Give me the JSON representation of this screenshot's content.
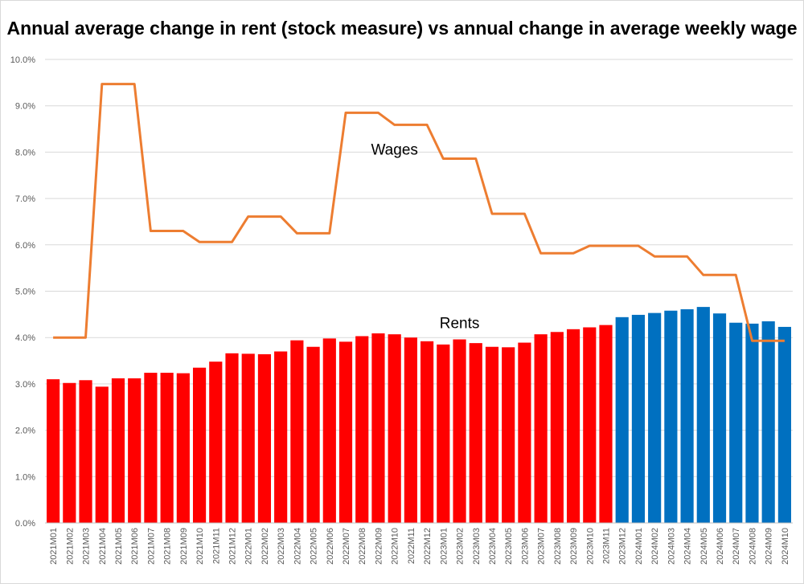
{
  "chart_data": {
    "type": "bar+line",
    "title": "Annual average change in rent (stock measure) vs annual change in average weekly wage",
    "xlabel": "",
    "ylabel": "",
    "ylim": [
      0,
      10
    ],
    "y_ticks": [
      "0.0%",
      "1.0%",
      "2.0%",
      "3.0%",
      "4.0%",
      "5.0%",
      "6.0%",
      "7.0%",
      "8.0%",
      "9.0%",
      "10.0%"
    ],
    "grid": true,
    "categories": [
      "2021M01",
      "2021M02",
      "2021M03",
      "2021M04",
      "2021M05",
      "2021M06",
      "2021M07",
      "2021M08",
      "2021M09",
      "2021M10",
      "2021M11",
      "2021M12",
      "2022M01",
      "2022M02",
      "2022M03",
      "2022M04",
      "2022M05",
      "2022M06",
      "2022M07",
      "2022M08",
      "2022M09",
      "2022M10",
      "2022M11",
      "2022M12",
      "2023M01",
      "2023M02",
      "2023M03",
      "2023M04",
      "2023M05",
      "2023M06",
      "2023M07",
      "2023M08",
      "2023M09",
      "2023M10",
      "2023M11",
      "2023M12",
      "2024M01",
      "2024M02",
      "2024M03",
      "2024M04",
      "2024M05",
      "2024M06",
      "2024M07",
      "2024M08",
      "2024M09",
      "2024M10"
    ],
    "series": [
      {
        "name": "Rents",
        "kind": "bar",
        "values": [
          3.1,
          3.02,
          3.08,
          2.94,
          3.12,
          3.12,
          3.24,
          3.24,
          3.23,
          3.35,
          3.48,
          3.66,
          3.65,
          3.64,
          3.7,
          3.94,
          3.8,
          3.98,
          3.91,
          4.03,
          4.09,
          4.07,
          4.0,
          3.92,
          3.85,
          3.96,
          3.88,
          3.8,
          3.79,
          3.89,
          4.07,
          4.12,
          4.18,
          4.22,
          4.27,
          4.44,
          4.49,
          4.53,
          4.58,
          4.61,
          4.66,
          4.52,
          4.32,
          4.3,
          4.35,
          4.23
        ],
        "color_actual": "#ff0000",
        "color_forecast": "#0070c0",
        "forecast_from": "2023M12"
      },
      {
        "name": "Wages",
        "kind": "line",
        "color": "#ed7d31",
        "values": [
          4.0,
          4.0,
          4.0,
          9.47,
          9.47,
          9.47,
          6.3,
          6.3,
          6.3,
          6.06,
          6.06,
          6.06,
          6.61,
          6.61,
          6.61,
          6.25,
          6.25,
          6.25,
          8.85,
          8.85,
          8.85,
          8.59,
          8.59,
          8.59,
          7.86,
          7.86,
          7.86,
          6.67,
          6.67,
          6.67,
          5.82,
          5.82,
          5.82,
          5.98,
          5.98,
          5.98,
          5.98,
          5.75,
          5.75,
          5.75,
          5.35,
          5.35,
          5.35,
          3.93,
          3.93,
          3.93
        ]
      }
    ],
    "annotations": [
      {
        "text": "Wages",
        "x": "2022M10",
        "y": 7.95
      },
      {
        "text": "Rents",
        "x": "2023M02",
        "y": 4.2
      }
    ]
  }
}
